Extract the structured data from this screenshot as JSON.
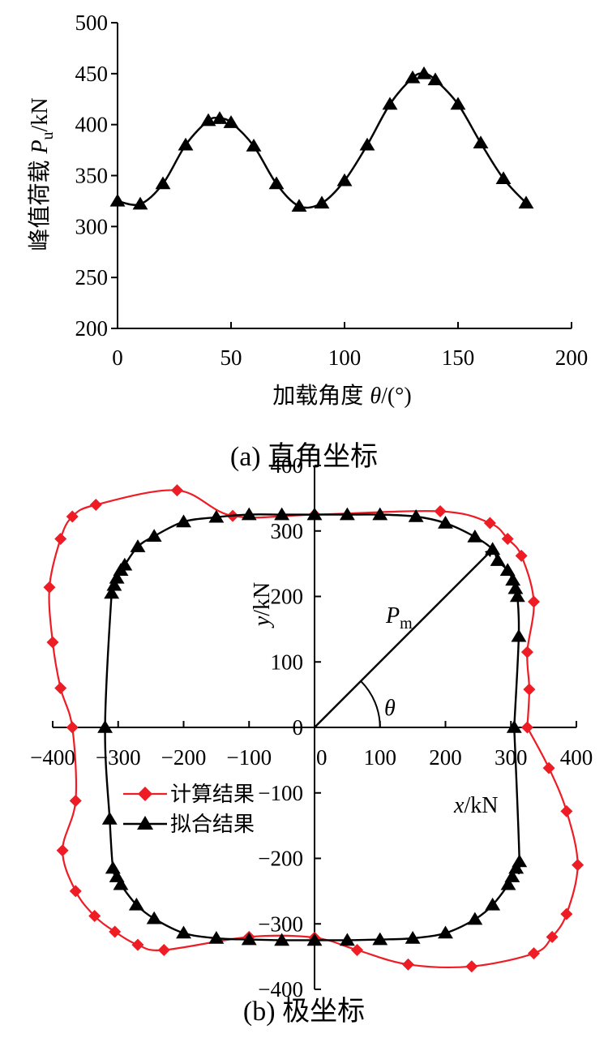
{
  "colors": {
    "computed": "#ee1c24",
    "fitted": "#000000",
    "axis": "#000000"
  },
  "chart_data": [
    {
      "type": "line",
      "caption": "(a)  直角坐标",
      "xlabel": "加载角度 θ /(°)",
      "xlabel_main": "加载角度",
      "xlabel_symbol": "θ",
      "xlabel_unit": "/(°)",
      "ylabel": "峰值荷载 Pu/kN",
      "ylabel_main": "峰值荷载",
      "ylabel_symbol": "P",
      "ylabel_sub": "u",
      "ylabel_unit": "/kN",
      "xlim": [
        0,
        200
      ],
      "ylim": [
        200,
        500
      ],
      "xticks": [
        0,
        50,
        100,
        150,
        200
      ],
      "yticks": [
        200,
        250,
        300,
        350,
        400,
        450,
        500
      ],
      "marker": "triangle",
      "x": [
        0,
        10,
        20,
        30,
        40,
        45,
        50,
        60,
        70,
        80,
        90,
        100,
        110,
        120,
        130,
        135,
        140,
        150,
        160,
        170,
        180
      ],
      "y": [
        325,
        322,
        342,
        380,
        404,
        406,
        402,
        379,
        342,
        320,
        323,
        345,
        380,
        420,
        446,
        450,
        444,
        420,
        382,
        347,
        323
      ]
    },
    {
      "type": "scatter",
      "caption": "(b)  极坐标",
      "xlabel": "x/kN",
      "xlabel_symbol": "x",
      "xlabel_unit": "/kN",
      "ylabel": "y/kN",
      "ylabel_symbol": "y",
      "ylabel_unit": "/kN",
      "xlim": [
        -400,
        400
      ],
      "ylim": [
        -400,
        400
      ],
      "xticks": [
        -400,
        -300,
        -200,
        -100,
        0,
        100,
        200,
        300,
        400
      ],
      "yticks": [
        -400,
        -300,
        -200,
        -100,
        0,
        100,
        200,
        300,
        400
      ],
      "annotations": {
        "vector_label": "P",
        "vector_sub": "m",
        "angle_label": "θ",
        "vector_tip": [
          272,
          272
        ]
      },
      "series": [
        {
          "name": "计算结果",
          "marker": "diamond",
          "points": [
            [
              325,
              0
            ],
            [
              328,
              58
            ],
            [
              325,
              115
            ],
            [
              335,
              192
            ],
            [
              316,
              262
            ],
            [
              295,
              288
            ],
            [
              268,
              312
            ],
            [
              192,
              330
            ],
            [
              0,
              325
            ],
            [
              -125,
              323
            ],
            [
              -210,
              362
            ],
            [
              -334,
              340
            ],
            [
              -370,
              322
            ],
            [
              -388,
              288
            ],
            [
              -405,
              214
            ],
            [
              -400,
              130
            ],
            [
              -388,
              60
            ],
            [
              -370,
              0
            ],
            [
              -365,
              -112
            ],
            [
              -385,
              -188
            ],
            [
              -365,
              -250
            ],
            [
              -336,
              -288
            ],
            [
              -305,
              -312
            ],
            [
              -270,
              -332
            ],
            [
              -230,
              -340
            ],
            [
              -100,
              -320
            ],
            [
              0,
              -321
            ],
            [
              65,
              -340
            ],
            [
              143,
              -362
            ],
            [
              240,
              -365
            ],
            [
              335,
              -345
            ],
            [
              363,
              -320
            ],
            [
              385,
              -285
            ],
            [
              402,
              -210
            ],
            [
              385,
              -128
            ],
            [
              358,
              -62
            ],
            [
              325,
              0
            ]
          ]
        },
        {
          "name": "拟合结果",
          "marker": "triangle",
          "points": [
            [
              305,
              0
            ],
            [
              312,
              139
            ],
            [
              310,
              200
            ],
            [
              307,
              212
            ],
            [
              303,
              225
            ],
            [
              295,
              240
            ],
            [
              280,
              255
            ],
            [
              272,
              272
            ],
            [
              245,
              291
            ],
            [
              200,
              312
            ],
            [
              155,
              322
            ],
            [
              100,
              325
            ],
            [
              50,
              325
            ],
            [
              0,
              325
            ],
            [
              -50,
              325
            ],
            [
              -100,
              325
            ],
            [
              -150,
              321
            ],
            [
              -200,
              314
            ],
            [
              -245,
              292
            ],
            [
              -270,
              276
            ],
            [
              -290,
              248
            ],
            [
              -296,
              240
            ],
            [
              -302,
              228
            ],
            [
              -306,
              217
            ],
            [
              -310,
              205
            ],
            [
              -320,
              0
            ],
            [
              -313,
              -140
            ],
            [
              -308,
              -215
            ],
            [
              -302,
              -228
            ],
            [
              -296,
              -240
            ],
            [
              -272,
              -271
            ],
            [
              -245,
              -292
            ],
            [
              -200,
              -314
            ],
            [
              -150,
              -322
            ],
            [
              -100,
              -324
            ],
            [
              -50,
              -325
            ],
            [
              0,
              -325
            ],
            [
              50,
              -325
            ],
            [
              100,
              -324
            ],
            [
              150,
              -322
            ],
            [
              200,
              -314
            ],
            [
              245,
              -293
            ],
            [
              272,
              -271
            ],
            [
              296,
              -240
            ],
            [
              302,
              -228
            ],
            [
              308,
              -215
            ],
            [
              313,
              -205
            ],
            [
              305,
              0
            ]
          ]
        }
      ]
    }
  ]
}
